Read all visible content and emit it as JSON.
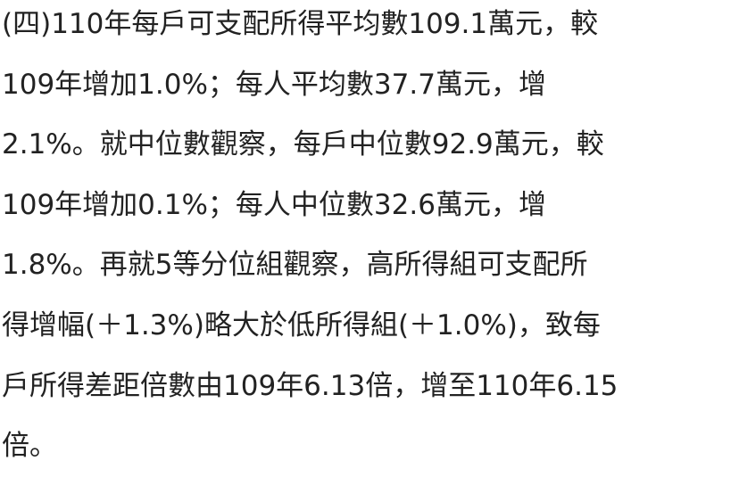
{
  "paragraph": {
    "lines": [
      "(四)110年每戶可支配所得平均數109.1萬元，較",
      "109年增加1.0%；每人平均數37.7萬元，增",
      "2.1%。就中位數觀察，每戶中位數92.9萬元，較",
      "109年增加0.1%；每人中位數32.6萬元，增",
      "1.8%。再就5等分位組觀察，高所得組可支配所",
      "得增幅(＋1.3%)略大於低所得組(＋1.0%)，致每",
      "戶所得差距倍數由109年6.13倍，增至110年6.15",
      "倍。"
    ]
  }
}
